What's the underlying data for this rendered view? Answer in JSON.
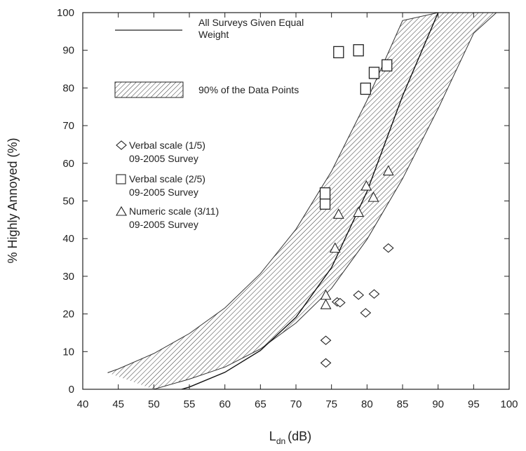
{
  "chart_data": {
    "type": "scatter",
    "title": "",
    "xlabel": "L",
    "xlabel_subscript": "dn",
    "xlabel_unit": "(dB)",
    "ylabel": "% Highly Annoyed (%)",
    "xlim": [
      40,
      100
    ],
    "ylim": [
      0,
      100
    ],
    "x_ticks": [
      "40",
      "45",
      "50",
      "55",
      "60",
      "65",
      "70",
      "75",
      "80",
      "85",
      "90",
      "95",
      "100"
    ],
    "y_ticks": [
      "0",
      "10",
      "20",
      "30",
      "40",
      "50",
      "60",
      "70",
      "80",
      "90",
      "100"
    ],
    "grid": false,
    "legend": {
      "curve_label_line1": "All Surveys Given Equal",
      "curve_label_line2": "Weight",
      "band_label": "90% of the Data Points"
    },
    "curve": {
      "name": "All Surveys Given Equal Weight",
      "x": [
        53.9,
        55,
        60,
        65,
        70,
        75,
        80,
        85,
        90
      ],
      "y": [
        0,
        0.6,
        4.5,
        10.3,
        19.1,
        32.3,
        52.5,
        77.9,
        100
      ]
    },
    "band": {
      "name": "90% of the Data Points",
      "upper_x": [
        43.5,
        45,
        50,
        55,
        60,
        65,
        70,
        75,
        80,
        85,
        90
      ],
      "upper_y": [
        4.4,
        5.4,
        9.5,
        14.8,
        21.6,
        30.7,
        42.5,
        57.9,
        76.7,
        97.9,
        100
      ],
      "lower_x": [
        50,
        55,
        60,
        65,
        70,
        75,
        80,
        85,
        90,
        95,
        98.2
      ],
      "lower_y": [
        0,
        2.7,
        5.9,
        10.7,
        17.6,
        26.8,
        39.8,
        55.9,
        74.5,
        94.5,
        100
      ]
    },
    "series": [
      {
        "name_line1": "Verbal scale (1/5)",
        "name_line2": "09-2005 Survey",
        "marker": "diamond",
        "x": [
          74.2,
          74.2,
          75.8,
          76.2,
          78.8,
          79.8,
          81,
          83
        ],
        "y": [
          7,
          13,
          23.2,
          23,
          25,
          20.3,
          25.3,
          37.5
        ]
      },
      {
        "name_line1": "Verbal scale (2/5)",
        "name_line2": "09-2005 Survey",
        "marker": "square",
        "x": [
          74.1,
          74.1,
          76,
          78.8,
          79.8,
          81,
          82.8
        ],
        "y": [
          49.3,
          52,
          89.5,
          90,
          79.8,
          84,
          86
        ]
      },
      {
        "name_line1": "Numeric scale (3/11)",
        "name_line2": "09-2005 Survey",
        "marker": "triangle",
        "x": [
          74.2,
          74.2,
          75.5,
          76,
          78.8,
          79.9,
          80.9,
          83
        ],
        "y": [
          22.5,
          25,
          37.5,
          46.5,
          47,
          54,
          51,
          58
        ]
      }
    ]
  }
}
